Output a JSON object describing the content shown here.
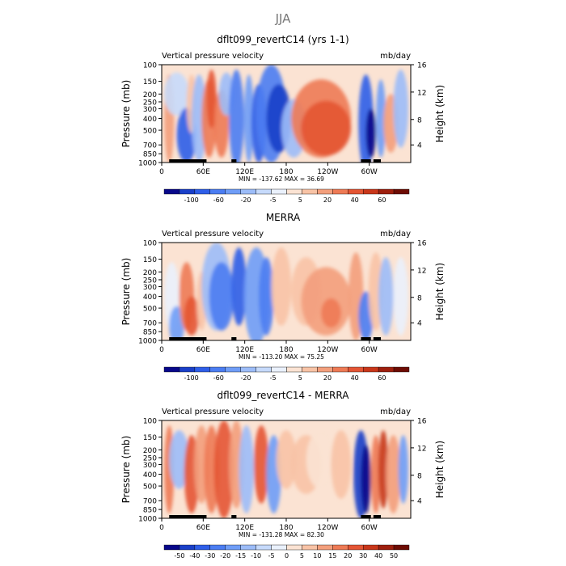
{
  "page_title": "JJA",
  "chart_data": [
    {
      "type": "heatmap",
      "title": "dflt099_revertC14 (yrs 1-1)",
      "left_string": "Vertical pressure velocity",
      "right_string": "mb/day",
      "xlabel": "",
      "ylabel": "Pressure (mb)",
      "y2label": "Height (km)",
      "x_ticks": [
        "0",
        "60E",
        "120E",
        "180",
        "120W",
        "60W"
      ],
      "y_ticks": [
        "100",
        "150",
        "200",
        "250",
        "300",
        "400",
        "500",
        "700",
        "850",
        "1000"
      ],
      "y2_ticks": [
        "16",
        "12",
        "8",
        "4"
      ],
      "min_max_text": "MIN = -137.62   MAX =  36.69",
      "colorbar_labels": [
        "-100",
        "-60",
        "-20",
        "-5",
        "5",
        "20",
        "40",
        "60"
      ],
      "colorbar_colors": [
        "#08088a",
        "#1a3fc8",
        "#2e5ee8",
        "#4b7df2",
        "#6f9df7",
        "#9cbcf8",
        "#c6dafb",
        "#eaf1fc",
        "#fbe3d3",
        "#f8c3a6",
        "#f39f7c",
        "#ee7a55",
        "#e45534",
        "#c8361a",
        "#9e1f0e",
        "#6d0c04"
      ]
    },
    {
      "type": "heatmap",
      "title": "MERRA",
      "left_string": "Vertical pressure velocity",
      "right_string": "mb/day",
      "xlabel": "",
      "ylabel": "Pressure (mb)",
      "y2label": "Height (km)",
      "x_ticks": [
        "0",
        "60E",
        "120E",
        "180",
        "120W",
        "60W"
      ],
      "y_ticks": [
        "100",
        "150",
        "200",
        "250",
        "300",
        "400",
        "500",
        "700",
        "850",
        "1000"
      ],
      "y2_ticks": [
        "16",
        "12",
        "8",
        "4"
      ],
      "min_max_text": "MIN = -113.20   MAX =  75.25",
      "colorbar_labels": [
        "-100",
        "-60",
        "-20",
        "-5",
        "5",
        "20",
        "40",
        "60"
      ],
      "colorbar_colors": [
        "#08088a",
        "#1a3fc8",
        "#2e5ee8",
        "#4b7df2",
        "#6f9df7",
        "#9cbcf8",
        "#c6dafb",
        "#eaf1fc",
        "#fbe3d3",
        "#f8c3a6",
        "#f39f7c",
        "#ee7a55",
        "#e45534",
        "#c8361a",
        "#9e1f0e",
        "#6d0c04"
      ]
    },
    {
      "type": "heatmap",
      "title": "dflt099_revertC14 - MERRA",
      "left_string": "Vertical pressure velocity",
      "right_string": "mb/day",
      "xlabel": "",
      "ylabel": "Pressure (mb)",
      "y2label": "Height (km)",
      "x_ticks": [
        "0",
        "60E",
        "120E",
        "180",
        "120W",
        "60W"
      ],
      "y_ticks": [
        "100",
        "150",
        "200",
        "250",
        "300",
        "400",
        "500",
        "700",
        "850",
        "1000"
      ],
      "y2_ticks": [
        "16",
        "12",
        "8",
        "4"
      ],
      "min_max_text": "MIN = -131.28   MAX =  82.30",
      "colorbar_labels": [
        "-50",
        "-40",
        "-30",
        "-20",
        "-15",
        "-10",
        "-5",
        "0",
        "5",
        "10",
        "15",
        "20",
        "30",
        "40",
        "50"
      ],
      "colorbar_colors": [
        "#08088a",
        "#1a3fc8",
        "#2e5ee8",
        "#4b7df2",
        "#6f9df7",
        "#9cbcf8",
        "#c6dafb",
        "#eaf1fc",
        "#fbe3d3",
        "#f8c3a6",
        "#f39f7c",
        "#ee7a55",
        "#e45534",
        "#c8361a",
        "#9e1f0e",
        "#6d0c04"
      ]
    }
  ]
}
